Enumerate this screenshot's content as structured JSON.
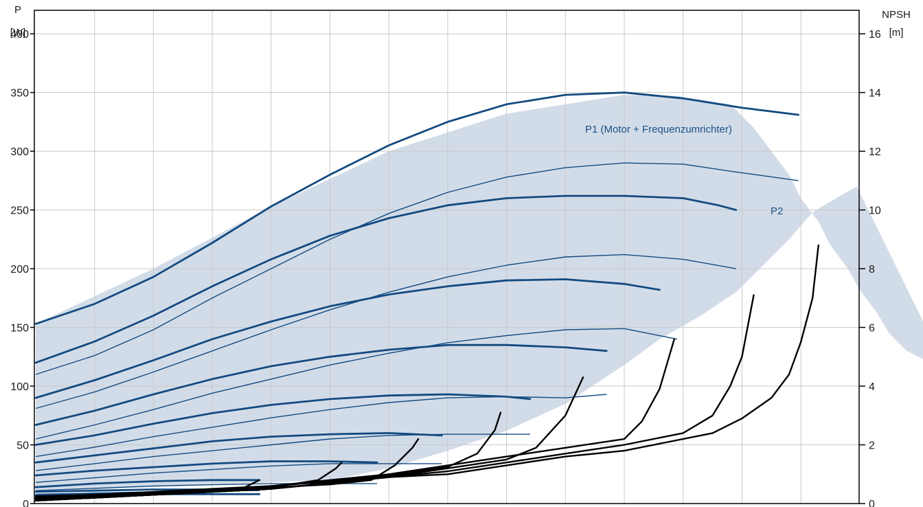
{
  "chart_data": {
    "type": "line",
    "left_axis": {
      "title_line1": "P",
      "title_line2": "[W]",
      "ylim": [
        0,
        420
      ],
      "ticks": [
        "0",
        "50",
        "100",
        "150",
        "200",
        "250",
        "300",
        "350",
        "400"
      ],
      "tick_values": [
        0,
        50,
        100,
        150,
        200,
        250,
        300,
        350,
        400
      ]
    },
    "right_axis": {
      "title_line1": "NPSH",
      "title_line2": "[m]",
      "ylim": [
        0,
        16.8
      ],
      "ticks": [
        "0",
        "2",
        "4",
        "6",
        "8",
        "10",
        "12",
        "14",
        "16"
      ],
      "tick_values": [
        0,
        2,
        4,
        6,
        8,
        10,
        12,
        14,
        16
      ]
    },
    "xlim": [
      0,
      14
    ],
    "grid": true,
    "labels": [
      {
        "text": "P1 (Motor + Frequenzumrichter)",
        "color": "#1a4f86"
      },
      {
        "text": "P2",
        "color": "#1a4f86"
      }
    ],
    "colors": {
      "p1": "#134a80",
      "p2": "#134a80",
      "npsh": "#000000",
      "envelope_fill": "#d2dce8",
      "grid": "#c9c9c9",
      "frame": "#000000"
    },
    "envelope": {
      "upper": [
        [
          0,
          153
        ],
        [
          2,
          200
        ],
        [
          4,
          253
        ],
        [
          6,
          300
        ],
        [
          8,
          332
        ],
        [
          10,
          348
        ],
        [
          10.9,
          347
        ],
        [
          11.8,
          340
        ],
        [
          12.2,
          320
        ],
        [
          12.5,
          300
        ],
        [
          12.8,
          280
        ],
        [
          13.0,
          260
        ],
        [
          13.3,
          240
        ],
        [
          13.5,
          220
        ],
        [
          13.8,
          200
        ],
        [
          14.0,
          182
        ],
        [
          14.3,
          162
        ],
        [
          14.5,
          145
        ],
        [
          14.8,
          130
        ],
        [
          15.5,
          112
        ]
      ],
      "lower": [
        [
          0,
          10
        ],
        [
          5,
          20
        ],
        [
          6,
          30
        ],
        [
          7,
          45
        ],
        [
          8,
          62
        ],
        [
          9,
          85
        ],
        [
          10,
          118
        ],
        [
          10.6,
          140
        ],
        [
          11.3,
          160
        ],
        [
          11.9,
          180
        ],
        [
          12.3,
          200
        ],
        [
          12.8,
          225
        ],
        [
          13.2,
          248
        ],
        [
          13.6,
          260
        ],
        [
          13.95,
          270
        ]
      ]
    },
    "p1_series": [
      {
        "values": [
          [
            0,
            153
          ],
          [
            1,
            170
          ],
          [
            2,
            193
          ],
          [
            3,
            222
          ],
          [
            4,
            253
          ],
          [
            5,
            280
          ],
          [
            6,
            305
          ],
          [
            7,
            325
          ],
          [
            8,
            340
          ],
          [
            9,
            348
          ],
          [
            10,
            350
          ],
          [
            11,
            345
          ],
          [
            12,
            337
          ],
          [
            12.96,
            331
          ]
        ]
      },
      {
        "values": [
          [
            0,
            120
          ],
          [
            1,
            138
          ],
          [
            2,
            160
          ],
          [
            3,
            185
          ],
          [
            4,
            208
          ],
          [
            5,
            228
          ],
          [
            6,
            243
          ],
          [
            7,
            254
          ],
          [
            8,
            260
          ],
          [
            9,
            262
          ],
          [
            10,
            262
          ],
          [
            11,
            260
          ],
          [
            11.6,
            254
          ],
          [
            11.9,
            250
          ]
        ]
      },
      {
        "values": [
          [
            0,
            90
          ],
          [
            1,
            105
          ],
          [
            2,
            122
          ],
          [
            3,
            140
          ],
          [
            4,
            155
          ],
          [
            5,
            168
          ],
          [
            6,
            178
          ],
          [
            7,
            185
          ],
          [
            8,
            190
          ],
          [
            9,
            191
          ],
          [
            10,
            187
          ],
          [
            10.6,
            182
          ]
        ]
      },
      {
        "values": [
          [
            0,
            67
          ],
          [
            1,
            79
          ],
          [
            2,
            93
          ],
          [
            3,
            106
          ],
          [
            4,
            117
          ],
          [
            5,
            125
          ],
          [
            6,
            131
          ],
          [
            7,
            135
          ],
          [
            8,
            135
          ],
          [
            9,
            133
          ],
          [
            9.7,
            130
          ]
        ]
      },
      {
        "values": [
          [
            0,
            50
          ],
          [
            1,
            58
          ],
          [
            2,
            68
          ],
          [
            3,
            77
          ],
          [
            4,
            84
          ],
          [
            5,
            89
          ],
          [
            6,
            92
          ],
          [
            7,
            93
          ],
          [
            8,
            91
          ],
          [
            8.4,
            89
          ]
        ]
      },
      {
        "values": [
          [
            0,
            35
          ],
          [
            1,
            41
          ],
          [
            2,
            47
          ],
          [
            3,
            53
          ],
          [
            4,
            57
          ],
          [
            5,
            59
          ],
          [
            6,
            60
          ],
          [
            6.9,
            58
          ]
        ]
      },
      {
        "values": [
          [
            0,
            24
          ],
          [
            1,
            28
          ],
          [
            2,
            31
          ],
          [
            3,
            34
          ],
          [
            4,
            36
          ],
          [
            5,
            36
          ],
          [
            5.8,
            35
          ]
        ]
      },
      {
        "values": [
          [
            0,
            14
          ],
          [
            1,
            17
          ],
          [
            2,
            19
          ],
          [
            3,
            20
          ],
          [
            3.8,
            20
          ]
        ]
      },
      {
        "values": [
          [
            0,
            10
          ],
          [
            1,
            11
          ],
          [
            2,
            12
          ],
          [
            3,
            12
          ],
          [
            3.8,
            12
          ]
        ]
      },
      {
        "values": [
          [
            0,
            7
          ],
          [
            1,
            8
          ],
          [
            2,
            8
          ],
          [
            3,
            8
          ],
          [
            3.8,
            8
          ]
        ]
      }
    ],
    "p2_series": [
      {
        "values": [
          [
            0,
            110
          ],
          [
            1,
            126
          ],
          [
            2,
            148
          ],
          [
            3,
            175
          ],
          [
            4,
            200
          ],
          [
            5,
            225
          ],
          [
            6,
            247
          ],
          [
            7,
            265
          ],
          [
            8,
            278
          ],
          [
            9,
            286
          ],
          [
            10,
            290
          ],
          [
            11,
            289
          ],
          [
            11.8,
            283
          ],
          [
            12.96,
            275
          ]
        ]
      },
      {
        "values": [
          [
            0,
            81
          ],
          [
            1,
            95
          ],
          [
            2,
            112
          ],
          [
            3,
            130
          ],
          [
            4,
            148
          ],
          [
            5,
            165
          ],
          [
            6,
            180
          ],
          [
            7,
            193
          ],
          [
            8,
            203
          ],
          [
            9,
            210
          ],
          [
            10,
            212
          ],
          [
            11,
            208
          ],
          [
            11.9,
            200
          ]
        ]
      },
      {
        "values": [
          [
            0,
            55
          ],
          [
            1,
            67
          ],
          [
            2,
            80
          ],
          [
            3,
            94
          ],
          [
            4,
            106
          ],
          [
            5,
            118
          ],
          [
            6,
            128
          ],
          [
            7,
            137
          ],
          [
            8,
            143
          ],
          [
            9,
            148
          ],
          [
            10,
            149
          ],
          [
            10.9,
            140
          ]
        ]
      },
      {
        "values": [
          [
            0,
            40
          ],
          [
            1,
            48
          ],
          [
            2,
            57
          ],
          [
            3,
            65
          ],
          [
            4,
            73
          ],
          [
            5,
            80
          ],
          [
            6,
            86
          ],
          [
            7,
            90
          ],
          [
            8,
            91
          ],
          [
            9,
            90
          ],
          [
            9.7,
            93
          ]
        ]
      },
      {
        "values": [
          [
            0,
            28
          ],
          [
            1,
            34
          ],
          [
            2,
            40
          ],
          [
            3,
            45
          ],
          [
            4,
            50
          ],
          [
            5,
            55
          ],
          [
            6,
            58
          ],
          [
            7,
            59
          ],
          [
            8,
            59
          ],
          [
            8.4,
            59
          ]
        ]
      },
      {
        "values": [
          [
            0,
            18
          ],
          [
            1,
            22
          ],
          [
            2,
            26
          ],
          [
            3,
            29
          ],
          [
            4,
            32
          ],
          [
            5,
            34
          ],
          [
            6,
            34
          ],
          [
            6.9,
            34
          ]
        ]
      },
      {
        "values": [
          [
            0,
            11
          ],
          [
            1,
            13
          ],
          [
            2,
            15
          ],
          [
            3,
            16
          ],
          [
            4,
            17
          ],
          [
            5,
            17
          ],
          [
            5.8,
            17
          ]
        ]
      },
      {
        "values": [
          [
            0,
            8
          ],
          [
            1,
            9
          ],
          [
            2,
            10
          ],
          [
            3,
            11
          ],
          [
            3.8,
            11
          ]
        ]
      }
    ],
    "npsh_series": [
      {
        "values": [
          [
            0,
            0.25
          ],
          [
            1,
            0.3
          ],
          [
            2,
            0.35
          ],
          [
            3,
            0.4
          ],
          [
            3.5,
            0.5
          ],
          [
            3.8,
            0.8
          ]
        ]
      },
      {
        "values": [
          [
            0,
            0.2
          ],
          [
            1,
            0.3
          ],
          [
            2,
            0.35
          ],
          [
            3,
            0.45
          ],
          [
            4,
            0.55
          ],
          [
            4.8,
            0.8
          ],
          [
            5.1,
            1.2
          ],
          [
            5.2,
            1.4
          ]
        ]
      },
      {
        "values": [
          [
            0,
            0.15
          ],
          [
            1,
            0.25
          ],
          [
            2,
            0.35
          ],
          [
            3,
            0.45
          ],
          [
            4,
            0.55
          ],
          [
            5,
            0.65
          ],
          [
            5.7,
            0.8
          ],
          [
            6.1,
            1.3
          ],
          [
            6.4,
            1.9
          ],
          [
            6.5,
            2.2
          ]
        ]
      },
      {
        "values": [
          [
            0,
            0.2
          ],
          [
            1,
            0.3
          ],
          [
            2,
            0.4
          ],
          [
            3,
            0.5
          ],
          [
            4,
            0.6
          ],
          [
            5,
            0.75
          ],
          [
            6,
            0.95
          ],
          [
            7,
            1.25
          ],
          [
            7.5,
            1.7
          ],
          [
            7.8,
            2.5
          ],
          [
            7.9,
            3.1
          ]
        ]
      },
      {
        "values": [
          [
            0,
            0.1
          ],
          [
            1,
            0.2
          ],
          [
            2,
            0.3
          ],
          [
            3,
            0.4
          ],
          [
            4,
            0.5
          ],
          [
            5,
            0.7
          ],
          [
            6,
            0.9
          ],
          [
            7,
            1.2
          ],
          [
            8,
            1.5
          ],
          [
            8.5,
            1.9
          ],
          [
            9,
            3.0
          ],
          [
            9.3,
            4.3
          ]
        ]
      },
      {
        "values": [
          [
            0,
            0.1
          ],
          [
            1,
            0.2
          ],
          [
            2,
            0.3
          ],
          [
            3,
            0.4
          ],
          [
            4,
            0.6
          ],
          [
            5,
            0.8
          ],
          [
            6,
            1.0
          ],
          [
            7,
            1.3
          ],
          [
            8,
            1.6
          ],
          [
            9,
            1.9
          ],
          [
            10,
            2.2
          ],
          [
            10.3,
            2.8
          ],
          [
            10.6,
            3.9
          ],
          [
            10.85,
            5.6
          ]
        ]
      },
      {
        "values": [
          [
            0,
            0.1
          ],
          [
            1,
            0.2
          ],
          [
            2,
            0.3
          ],
          [
            3,
            0.4
          ],
          [
            4,
            0.5
          ],
          [
            5,
            0.7
          ],
          [
            6,
            0.9
          ],
          [
            7,
            1.1
          ],
          [
            8,
            1.4
          ],
          [
            9,
            1.7
          ],
          [
            10,
            2.0
          ],
          [
            11,
            2.4
          ],
          [
            11.5,
            3.0
          ],
          [
            11.8,
            4.0
          ],
          [
            12,
            5.0
          ],
          [
            12.2,
            7.1
          ]
        ]
      },
      {
        "values": [
          [
            0,
            0.1
          ],
          [
            1,
            0.2
          ],
          [
            2,
            0.3
          ],
          [
            3,
            0.4
          ],
          [
            4,
            0.5
          ],
          [
            5,
            0.7
          ],
          [
            6,
            0.9
          ],
          [
            7,
            1.0
          ],
          [
            8,
            1.3
          ],
          [
            9,
            1.6
          ],
          [
            10,
            1.8
          ],
          [
            11,
            2.2
          ],
          [
            11.5,
            2.4
          ],
          [
            12,
            2.9
          ],
          [
            12.5,
            3.6
          ],
          [
            12.8,
            4.4
          ],
          [
            13,
            5.5
          ],
          [
            13.2,
            7.0
          ],
          [
            13.3,
            8.8
          ]
        ]
      }
    ]
  }
}
